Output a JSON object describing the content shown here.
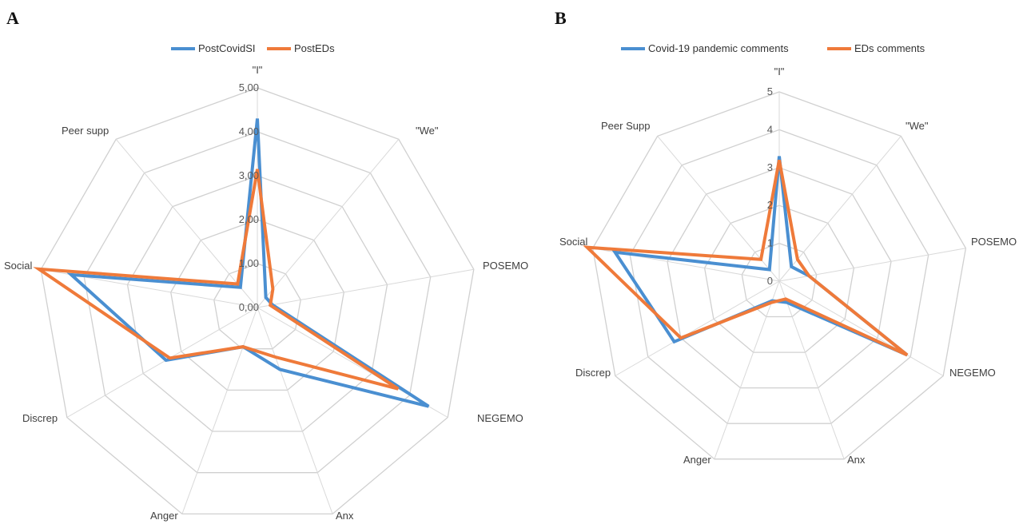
{
  "colors": {
    "series1": "#4a8fd1",
    "series2": "#ef7a3a"
  },
  "chart_data": [
    {
      "panel": "A",
      "type": "radar",
      "axes": [
        "\"I\"",
        "\"We\"",
        "POSEMO",
        "NEGEMO",
        "Anx",
        "Anger",
        "Discrep",
        "Social",
        "Peer supp"
      ],
      "ylim": [
        0,
        5
      ],
      "ticks": [
        "0,00",
        "1,00",
        "2,00",
        "3,00",
        "4,00",
        "5,00"
      ],
      "legend_position": "top",
      "series": [
        {
          "name": "PostCovidSI",
          "values": [
            4.3,
            0.3,
            0.35,
            4.5,
            1.5,
            0.95,
            2.4,
            4.3,
            0.6
          ]
        },
        {
          "name": "PostEDs",
          "values": [
            3.15,
            0.55,
            0.3,
            3.7,
            1.2,
            0.95,
            2.3,
            5.05,
            0.7
          ]
        }
      ]
    },
    {
      "panel": "B",
      "type": "radar",
      "axes": [
        "\"I\"",
        "\"We\"",
        "POSEMO",
        "NEGEMO",
        "Anx",
        "Anger",
        "Discrep",
        "Social",
        "Peer Supp"
      ],
      "ylim": [
        0,
        5
      ],
      "ticks": [
        "0",
        "1",
        "2",
        "3",
        "4",
        "5"
      ],
      "legend_position": "top",
      "series": [
        {
          "name": "Covid-19 pandemic comments",
          "values": [
            3.3,
            0.5,
            0.8,
            3.9,
            0.6,
            0.55,
            3.2,
            4.4,
            0.4
          ]
        },
        {
          "name": "EDs comments",
          "values": [
            3.2,
            0.75,
            0.8,
            3.9,
            0.5,
            0.6,
            3.0,
            5.15,
            0.75
          ]
        }
      ]
    }
  ]
}
